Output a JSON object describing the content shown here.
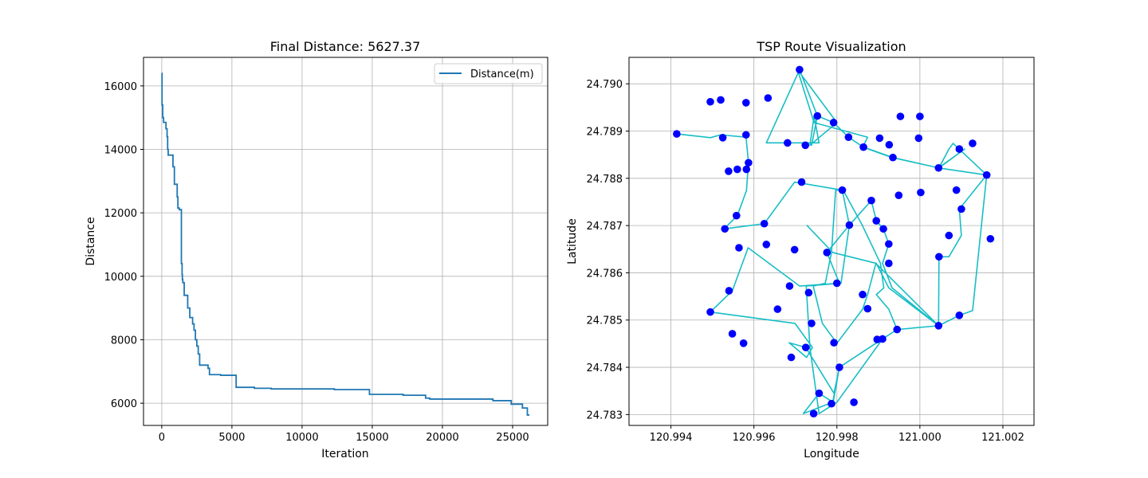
{
  "chart_data": [
    {
      "type": "line",
      "title": "Final Distance: 5627.37",
      "xlabel": "Iteration",
      "ylabel": "Distance",
      "xlim": [
        -1300,
        27500
      ],
      "ylim": [
        5300,
        16900
      ],
      "xticks": [
        0,
        5000,
        10000,
        15000,
        20000,
        25000
      ],
      "xtick_labels": [
        "0",
        "5000",
        "10000",
        "15000",
        "20000",
        "25000"
      ],
      "yticks": [
        6000,
        8000,
        10000,
        12000,
        14000,
        16000
      ],
      "ytick_labels": [
        "6000",
        "8000",
        "10000",
        "12000",
        "14000",
        "16000"
      ],
      "grid": true,
      "legend_position": "top-right",
      "color": "#1f77b4",
      "series": [
        {
          "name": "Distance(m)",
          "x": [
            0,
            20,
            20,
            70,
            70,
            130,
            130,
            300,
            300,
            380,
            380,
            420,
            420,
            460,
            460,
            800,
            800,
            900,
            900,
            1100,
            1100,
            1150,
            1150,
            1250,
            1250,
            1400,
            1400,
            1450,
            1450,
            1470,
            1470,
            1500,
            1500,
            1600,
            1600,
            1850,
            1850,
            2000,
            2000,
            2200,
            2200,
            2300,
            2300,
            2400,
            2400,
            2500,
            2500,
            2600,
            2600,
            2700,
            2700,
            3300,
            3300,
            3400,
            3400,
            4200,
            4200,
            5300,
            5300,
            6600,
            6600,
            7800,
            7800,
            12300,
            12300,
            14800,
            14800,
            17200,
            17200,
            18800,
            18800,
            19100,
            19100,
            23600,
            23600,
            24900,
            24900,
            25700,
            25700,
            26050,
            26050,
            26200
          ],
          "y": [
            16400,
            16400,
            15400,
            15400,
            15000,
            15000,
            14850,
            14850,
            14650,
            14650,
            14400,
            14400,
            14000,
            14000,
            13820,
            13820,
            13450,
            13450,
            12900,
            12900,
            12500,
            12500,
            12150,
            12150,
            12100,
            12100,
            10400,
            10400,
            10050,
            10050,
            9900,
            9900,
            9800,
            9800,
            9400,
            9400,
            9000,
            9000,
            8700,
            8700,
            8500,
            8500,
            8300,
            8300,
            8000,
            8000,
            7800,
            7800,
            7550,
            7550,
            7200,
            7200,
            7100,
            7100,
            6900,
            6900,
            6880,
            6880,
            6500,
            6500,
            6470,
            6470,
            6450,
            6450,
            6430,
            6430,
            6280,
            6280,
            6250,
            6250,
            6160,
            6160,
            6130,
            6130,
            6080,
            6080,
            5970,
            5970,
            5850,
            5850,
            5627.37,
            5627.37
          ]
        }
      ]
    },
    {
      "type": "scatter",
      "title": "TSP Route Visualization",
      "xlabel": "Longitude",
      "ylabel": "Latitude",
      "xlim": [
        120.99299,
        121.00275
      ],
      "ylim": [
        24.78277,
        24.79056
      ],
      "xticks": [
        120.994,
        120.996,
        120.998,
        121.0,
        121.002
      ],
      "xtick_labels": [
        "120.994",
        "120.996",
        "120.998",
        "121.000",
        "121.002"
      ],
      "yticks": [
        24.783,
        24.784,
        24.785,
        24.786,
        24.787,
        24.788,
        24.789,
        24.79
      ],
      "ytick_labels": [
        "24.783",
        "24.784",
        "24.785",
        "24.786",
        "24.787",
        "24.788",
        "24.789",
        "24.790"
      ],
      "grid": true,
      "point_color": "#0000ff",
      "route_color": "#17bec5",
      "points": {
        "lon": [
          121.0,
          120.99953,
          120.99495,
          120.9952,
          120.99581,
          120.9971,
          120.99753,
          120.99634,
          120.99792,
          120.99828,
          120.99864,
          120.99903,
          120.99926,
          120.99935,
          120.99997,
          121.00045,
          121.00095,
          121.00127,
          120.99414,
          120.99525,
          120.99581,
          120.99587,
          120.99582,
          120.99539,
          120.9956,
          120.99681,
          120.99724,
          120.99813,
          120.99883,
          120.99949,
          121.00002,
          121.00088,
          121.00161,
          120.99558,
          120.9953,
          120.99625,
          120.99715,
          120.9963,
          120.99698,
          120.99776,
          120.9983,
          120.99895,
          120.99912,
          120.99925,
          121.001,
          121.0007,
          121.00046,
          121.0017,
          120.99564,
          120.99495,
          120.9954,
          120.99575,
          120.99686,
          120.99732,
          120.998,
          120.99925,
          120.99862,
          120.99874,
          120.99657,
          120.99548,
          120.99739,
          120.9969,
          120.99725,
          120.99793,
          120.99806,
          120.99897,
          120.99945,
          120.99757,
          120.99787,
          120.99744,
          120.99841,
          121.00045,
          121.00095,
          120.9991
        ],
        "lat": [
          24.78931,
          24.78931,
          24.78962,
          24.78966,
          24.7896,
          24.7903,
          24.78932,
          24.7897,
          24.78918,
          24.78887,
          24.78866,
          24.78885,
          24.78871,
          24.78844,
          24.78885,
          24.78822,
          24.78862,
          24.78874,
          24.78894,
          24.78886,
          24.78892,
          24.78833,
          24.78819,
          24.78815,
          24.78819,
          24.78875,
          24.7887,
          24.78775,
          24.78753,
          24.78764,
          24.7877,
          24.78775,
          24.78807,
          24.78721,
          24.78693,
          24.78704,
          24.78792,
          24.7866,
          24.78649,
          24.78643,
          24.78701,
          24.7871,
          24.78693,
          24.78661,
          24.78735,
          24.78679,
          24.78634,
          24.78672,
          24.78653,
          24.78517,
          24.78562,
          24.78451,
          24.78572,
          24.78558,
          24.78578,
          24.7862,
          24.78554,
          24.78524,
          24.78523,
          24.78471,
          24.78493,
          24.78421,
          24.78442,
          24.78452,
          24.784,
          24.78459,
          24.7848,
          24.78345,
          24.78323,
          24.78302,
          24.78326,
          24.78488,
          24.7851,
          24.7846
        ]
      },
      "route": {
        "lon": [
          120.99414,
          120.99495,
          120.9952,
          120.99581,
          120.99587,
          120.99582,
          120.9956,
          120.99528,
          120.99625,
          120.99698,
          120.99813,
          120.9983,
          120.99776,
          120.99806,
          120.9971,
          120.99586,
          120.99548,
          120.99495,
          120.99699,
          120.99741,
          120.99727,
          120.99685,
          120.99725,
          120.99793,
          120.99806,
          120.99791,
          120.99757,
          120.99719,
          120.9979,
          120.99806,
          120.99908,
          120.99945,
          121.00045,
          121.00095,
          121.00127,
          121.00161,
          121.0008,
          121.0007,
          121.00046,
          121.00108,
          121.00045,
          120.99933,
          120.99862,
          120.99874,
          120.99745,
          120.99705,
          120.998,
          120.99735,
          120.99745,
          120.99757,
          120.9963,
          120.9971,
          120.99753,
          120.99739,
          120.99753,
          120.99792,
          120.99828,
          120.99864,
          120.99935,
          121.00045,
          121.00161,
          121.00095,
          121.001,
          121.0007,
          121.00046,
          121.00045,
          120.99933,
          120.9991,
          120.99925,
          120.99912,
          120.99895,
          120.99883,
          120.9983,
          120.9981,
          120.99726,
          120.99735,
          120.99757,
          120.998,
          120.9991,
          120.99945,
          120.99925,
          120.99895,
          120.99913,
          120.99905,
          120.99861,
          120.99815,
          120.99797,
          120.99787,
          120.99772,
          120.99743,
          120.99765,
          120.998,
          120.99862,
          120.99874,
          120.99894,
          121.00045,
          120.99925,
          120.99895,
          120.9979,
          120.99727
        ],
        "lat": [
          24.78894,
          24.78886,
          24.78892,
          24.78887,
          24.78833,
          24.78774,
          24.78721,
          24.78693,
          24.78704,
          24.78792,
          24.78775,
          24.78701,
          24.78643,
          24.78578,
          24.78572,
          24.78653,
          24.78562,
          24.78517,
          24.78493,
          24.78442,
          24.78421,
          24.78452,
          24.78442,
          24.78345,
          24.784,
          24.78326,
          24.78345,
          24.78302,
          24.78326,
          24.784,
          24.78459,
          24.7848,
          24.78488,
          24.7851,
          24.7852,
          24.78807,
          24.78874,
          24.78862,
          24.78822,
          24.78862,
          24.78822,
          24.78844,
          24.78866,
          24.78887,
          24.78918,
          24.7903,
          24.78918,
          24.7887,
          24.78932,
          24.78875,
          24.78875,
          24.7903,
          24.78932,
          24.7887,
          24.78932,
          24.78918,
          24.78887,
          24.78866,
          24.78844,
          24.78822,
          24.78807,
          24.78735,
          24.78679,
          24.78634,
          24.78634,
          24.78488,
          24.78568,
          24.7862,
          24.78661,
          24.78693,
          24.7871,
          24.78753,
          24.78701,
          24.78578,
          24.78572,
          24.78442,
          24.78302,
          24.78326,
          24.7846,
          24.7848,
          24.78523,
          24.78554,
          24.78568,
          24.7862,
          24.78701,
          24.78775,
          24.78775,
          24.78643,
          24.78578,
          24.78572,
          24.78493,
          24.78451,
          24.78523,
          24.78554,
          24.7862,
          24.78488,
          24.78568,
          24.7862,
          24.78643,
          24.78701
        ]
      }
    }
  ]
}
